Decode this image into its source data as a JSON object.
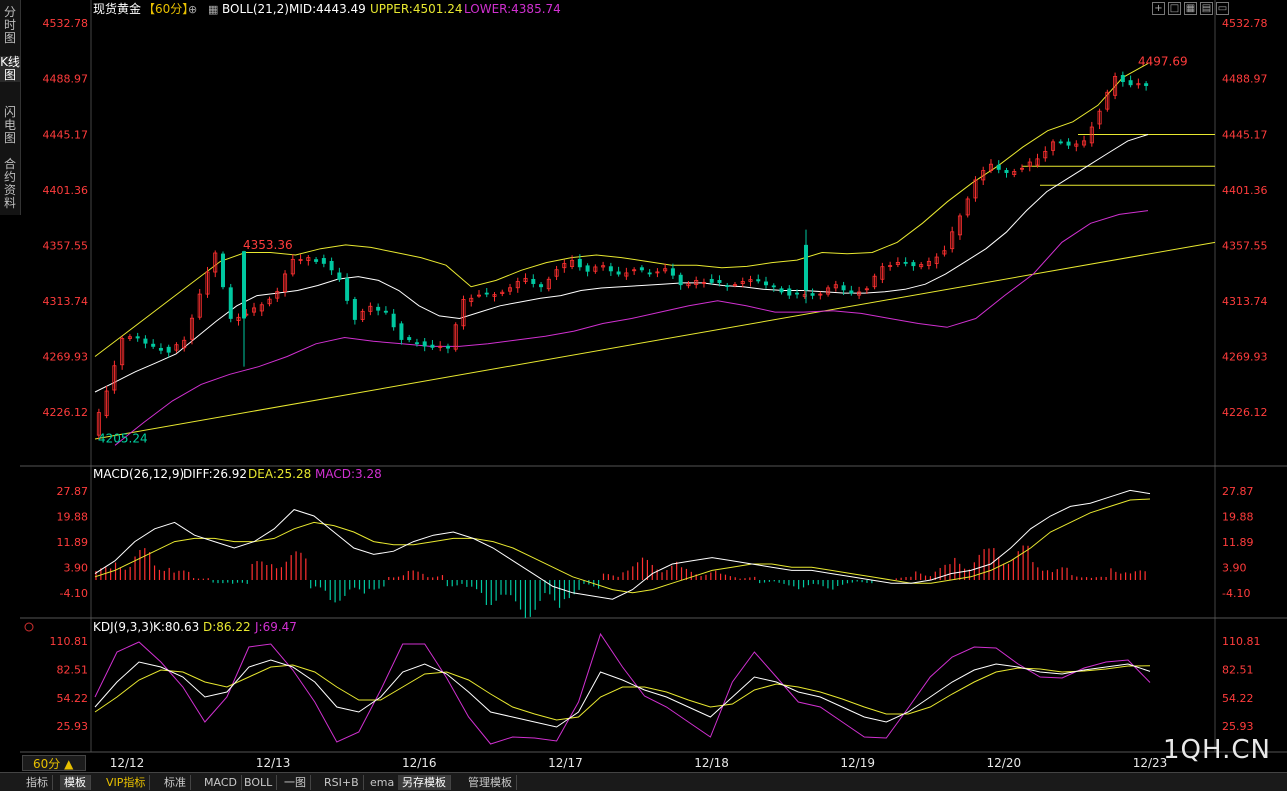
{
  "side_tabs": [
    {
      "label": "分时图"
    },
    {
      "label": "K线图"
    },
    {
      "label": "闪电图"
    },
    {
      "label": "合约资料"
    }
  ],
  "header": {
    "title": "现货黄金",
    "period": "【60分】",
    "boll_label": "BOLL(21,2)",
    "mid": "MID:4443.49",
    "upper": "UPPER:4501.24",
    "lower": "LOWER:4385.74"
  },
  "macd_header": {
    "label": "MACD(26,12,9)",
    "diff": "DIFF:26.92",
    "dea": "DEA:25.28",
    "macd": "MACD:3.28"
  },
  "kdj_header": {
    "label": "KDJ(9,3,3)",
    "k": "K:80.63",
    "d": "D:86.22",
    "j": "J:69.47"
  },
  "period_selector": "60分",
  "bottom_tabs": [
    {
      "label": "指标"
    },
    {
      "label": "模板"
    },
    {
      "label": "VIP指标"
    },
    {
      "label": "标准"
    },
    {
      "label": "MACD"
    },
    {
      "label": "BOLL"
    },
    {
      "label": "一图"
    },
    {
      "label": "RSI+B"
    },
    {
      "label": "ema"
    },
    {
      "label": "另存模板"
    },
    {
      "label": "管理模板"
    }
  ],
  "watermark": "1QH.CN",
  "colors": {
    "up": "#ff3030",
    "down": "#00c8a0",
    "mid": "#ffffff",
    "upper": "#e8e830",
    "lower": "#d030d0",
    "dea": "#e8e830",
    "price_label": "#ff3c3c",
    "date_label": "#e8e8e8"
  },
  "chart_data": [
    {
      "type": "candlestick",
      "name": "price",
      "x_labels": [
        "12/12",
        "12/13",
        "12/16",
        "12/17",
        "12/18",
        "12/19",
        "12/20",
        "12/23"
      ],
      "y_ticks": [
        4532.78,
        4488.97,
        4445.17,
        4401.36,
        4357.55,
        4313.74,
        4269.93,
        4226.12
      ],
      "y_tick_labels": [
        "4532.78",
        "4488.97",
        "4445.17",
        "4401.36",
        "4357.55",
        "4313.74",
        "4269.93",
        "4226.12"
      ],
      "ylim": [
        4190,
        4540
      ],
      "annotations": [
        {
          "text": "4497.69",
          "value": 4497.69
        },
        {
          "text": "4353.36",
          "value": 4353.36
        },
        {
          "text": "4205.24",
          "value": 4205.24
        }
      ],
      "close_path": [
        4208,
        4242,
        4285,
        4283,
        4278,
        4275,
        4282,
        4320,
        4350,
        4300,
        4305,
        4310,
        4322,
        4345,
        4348,
        4345,
        4330,
        4300,
        4308,
        4305,
        4285,
        4280,
        4278,
        4275,
        4315,
        4320,
        4318,
        4325,
        4330,
        4325,
        4340,
        4345,
        4338,
        4340,
        4335,
        4340,
        4335,
        4340,
        4325,
        4330,
        4330,
        4325,
        4330,
        4328,
        4325,
        4320,
        4318,
        4320,
        4325,
        4320,
        4325,
        4340,
        4345,
        4340,
        4345,
        4355,
        4380,
        4410,
        4420,
        4415,
        4420,
        4425,
        4440,
        4435,
        4440,
        4465,
        4490,
        4485,
        4482
      ],
      "boll_mid": [
        4242,
        4250,
        4258,
        4265,
        4272,
        4285,
        4298,
        4310,
        4318,
        4320,
        4322,
        4326,
        4331,
        4333,
        4330,
        4322,
        4310,
        4302,
        4300,
        4305,
        4310,
        4313,
        4316,
        4318,
        4322,
        4324,
        4325,
        4326,
        4327,
        4328,
        4328,
        4326,
        4325,
        4323,
        4322,
        4322,
        4321,
        4320,
        4320,
        4321,
        4323,
        4327,
        4335,
        4345,
        4355,
        4368,
        4385,
        4400,
        4410,
        4420,
        4430,
        4440,
        4445
      ],
      "boll_upper": [
        4270,
        4285,
        4300,
        4315,
        4330,
        4345,
        4352,
        4352,
        4350,
        4355,
        4358,
        4356,
        4352,
        4348,
        4342,
        4325,
        4330,
        4338,
        4344,
        4348,
        4350,
        4348,
        4345,
        4342,
        4342,
        4340,
        4341,
        4344,
        4346,
        4352,
        4351,
        4352,
        4360,
        4375,
        4392,
        4407,
        4420,
        4435,
        4448,
        4455,
        4468,
        4490,
        4501
      ],
      "boll_lower": [
        4200,
        4218,
        4235,
        4248,
        4256,
        4262,
        4270,
        4280,
        4285,
        4282,
        4280,
        4278,
        4278,
        4280,
        4283,
        4286,
        4290,
        4296,
        4300,
        4305,
        4310,
        4314,
        4310,
        4305,
        4305,
        4306,
        4304,
        4300,
        4296,
        4293,
        4300,
        4318,
        4335,
        4360,
        4375,
        4382,
        4385
      ],
      "trendline": {
        "from": 4205,
        "to": 4360
      },
      "horizontal_levels": [
        4445,
        4420,
        4405
      ]
    },
    {
      "type": "bar",
      "name": "MACD",
      "y_ticks": [
        27.87,
        19.88,
        11.89,
        3.9,
        -4.1
      ],
      "y_tick_labels": [
        "27.87",
        "19.88",
        "11.89",
        "3.90",
        "-4.10"
      ],
      "ylim": [
        -10,
        30
      ],
      "diff": [
        2,
        6,
        12,
        16,
        18,
        14,
        12,
        10,
        12,
        16,
        22,
        20,
        15,
        10,
        8,
        9,
        12,
        14,
        15,
        13,
        10,
        6,
        2,
        -2,
        -4,
        -5,
        -6,
        -3,
        2,
        5,
        6,
        7,
        6,
        5,
        4,
        3,
        3,
        2,
        1,
        0,
        -1,
        -1,
        0,
        2,
        3,
        5,
        10,
        16,
        20,
        23,
        24,
        26,
        28,
        27
      ],
      "dea": [
        1,
        3,
        6,
        9,
        12,
        13,
        13,
        12,
        12,
        13,
        16,
        18,
        17,
        15,
        12,
        11,
        11,
        12,
        13,
        13,
        12,
        10,
        7,
        4,
        1,
        -1,
        -3,
        -4,
        -3,
        -1,
        1,
        3,
        4,
        5,
        5,
        4,
        4,
        3,
        2,
        1,
        0,
        -1,
        -1,
        0,
        1,
        3,
        6,
        10,
        15,
        18,
        21,
        23,
        25,
        25.3
      ],
      "histogram": [
        4,
        8,
        10,
        7,
        3,
        1,
        -1,
        -2,
        6,
        9,
        9,
        -5,
        -7,
        -6,
        -3,
        2,
        3,
        2,
        -2,
        -5,
        -8,
        -11,
        -12,
        -10,
        -6,
        -3,
        2,
        6,
        7,
        6,
        4,
        3,
        2,
        1,
        -1,
        -2,
        -3,
        -3,
        -2,
        -1,
        0,
        1,
        3,
        5,
        8,
        10,
        12,
        11,
        7,
        4,
        2,
        1,
        5,
        3
      ]
    },
    {
      "type": "line",
      "name": "KDJ",
      "y_ticks": [
        110.81,
        82.51,
        54.22,
        25.93
      ],
      "y_tick_labels": [
        "110.81",
        "82.51",
        "54.22",
        "25.93"
      ],
      "ylim": [
        0,
        120
      ],
      "k": [
        45,
        70,
        90,
        85,
        75,
        55,
        60,
        85,
        92,
        85,
        70,
        45,
        40,
        55,
        80,
        88,
        78,
        60,
        40,
        35,
        30,
        25,
        40,
        80,
        72,
        62,
        55,
        45,
        35,
        55,
        75,
        70,
        60,
        55,
        45,
        35,
        30,
        40,
        55,
        70,
        82,
        88,
        85,
        80,
        78,
        82,
        85,
        88,
        80.63
      ],
      "d": [
        40,
        55,
        72,
        82,
        80,
        70,
        65,
        75,
        85,
        87,
        80,
        65,
        52,
        52,
        65,
        78,
        80,
        72,
        58,
        45,
        38,
        32,
        35,
        55,
        65,
        65,
        60,
        52,
        45,
        48,
        62,
        68,
        65,
        60,
        53,
        45,
        38,
        38,
        45,
        58,
        70,
        80,
        84,
        83,
        80,
        81,
        83,
        86,
        86.22
      ],
      "j": [
        55,
        100,
        110,
        90,
        65,
        30,
        55,
        105,
        108,
        82,
        50,
        10,
        20,
        62,
        108,
        108,
        74,
        35,
        8,
        15,
        14,
        11,
        50,
        118,
        85,
        56,
        45,
        30,
        15,
        70,
        100,
        75,
        50,
        45,
        30,
        15,
        14,
        44,
        75,
        95,
        105,
        104,
        88,
        75,
        74,
        84,
        90,
        92,
        69.47
      ]
    }
  ]
}
